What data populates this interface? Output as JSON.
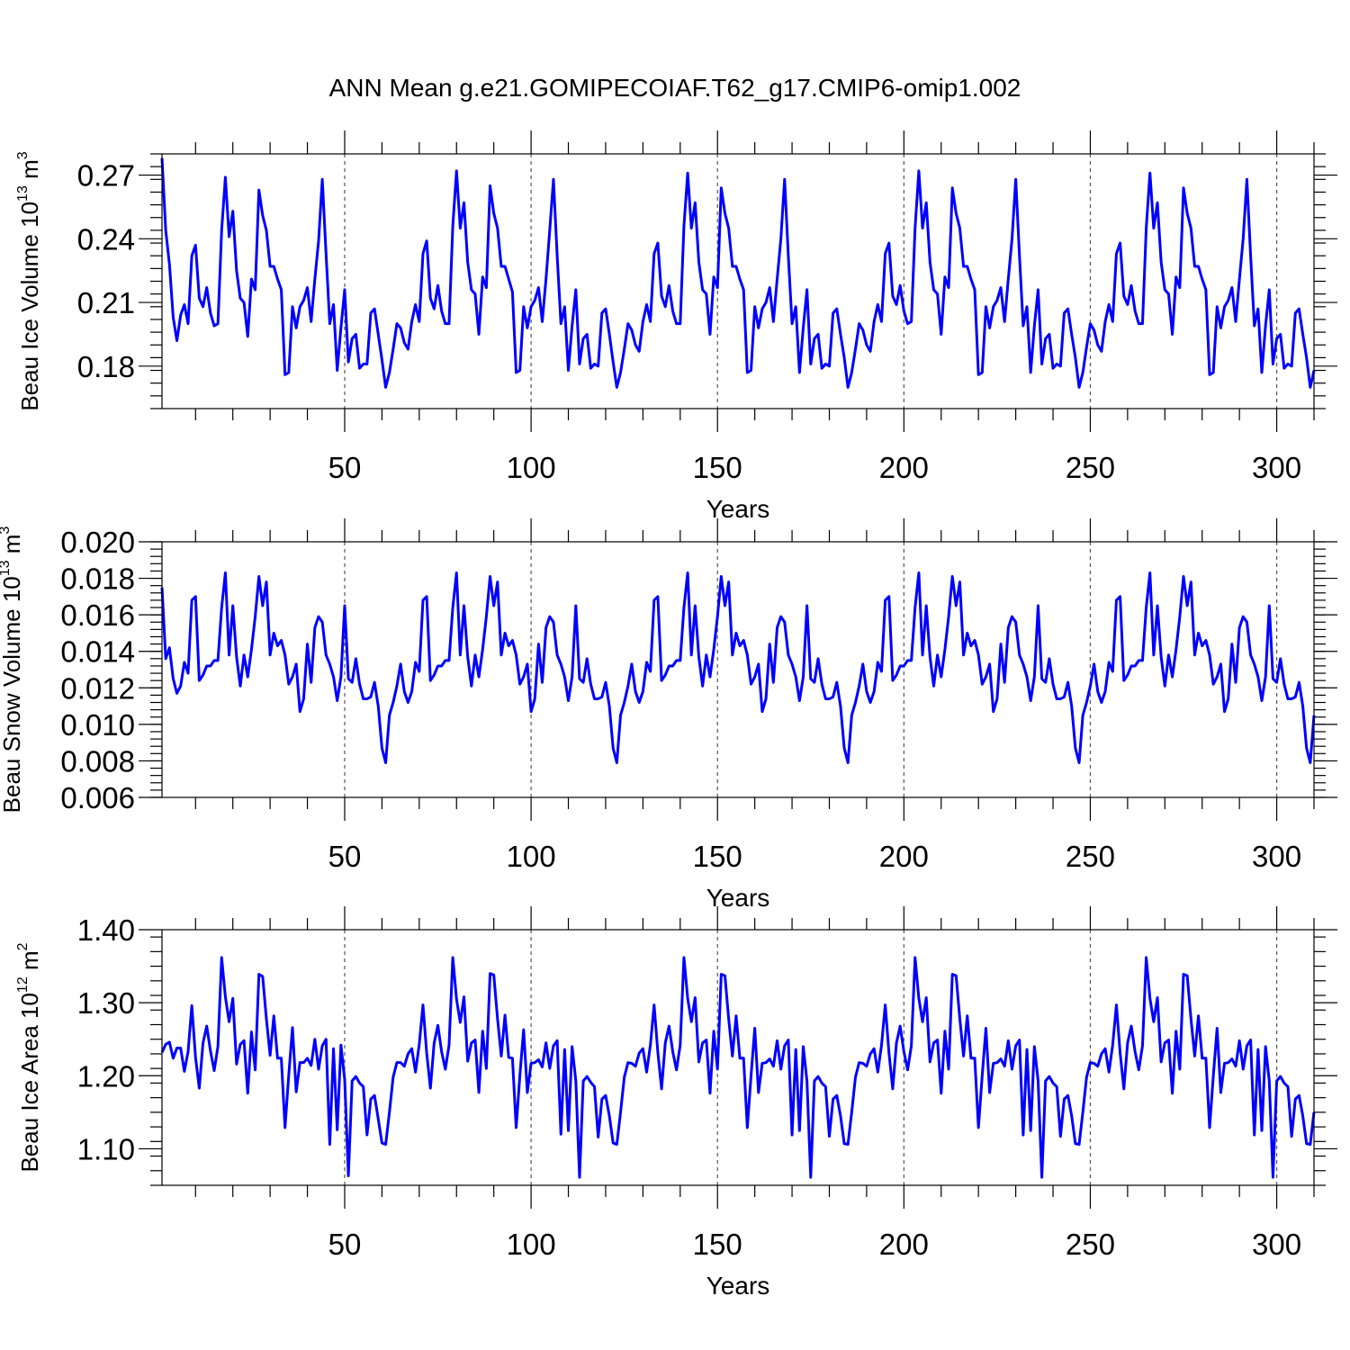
{
  "title": "ANN Mean g.e21.GOMIPECOIAF.T62_g17.CMIP6-omip1.002",
  "chart_data": [
    {
      "type": "line",
      "ylabel": "Beau Ice Volume 10",
      "ylabel_exp": "13",
      "ylabel_unit": " m",
      "ylabel_unit_exp": "3",
      "xlabel": "Years",
      "xlim": [
        1,
        310
      ],
      "ylim": [
        0.16,
        0.28
      ],
      "y_ticks": [
        0.18,
        0.21,
        0.24,
        0.27
      ],
      "y_tick_labels": [
        "0.18",
        "0.21",
        "0.24",
        "0.27"
      ],
      "x_ticks": [
        50,
        100,
        150,
        200,
        250,
        300
      ],
      "x_tick_labels": [
        "50",
        "100",
        "150",
        "200",
        "250",
        "300"
      ],
      "grid_x": true,
      "color": "#0000ff",
      "values": [
        0.278,
        0.244,
        0.228,
        0.203,
        0.192,
        0.204,
        0.209,
        0.2,
        0.232,
        0.237,
        0.212,
        0.208,
        0.217,
        0.205,
        0.199,
        0.2,
        0.244,
        0.269,
        0.241,
        0.253,
        0.225,
        0.212,
        0.21,
        0.194,
        0.221,
        0.216,
        0.263,
        0.251,
        0.244,
        0.227,
        0.227,
        0.221,
        0.216,
        0.176,
        0.177,
        0.208,
        0.198,
        0.208,
        0.211,
        0.217,
        0.201,
        0.221,
        0.239,
        0.268,
        0.233,
        0.2,
        0.209,
        0.178,
        0.198,
        0.216,
        0.182,
        0.193,
        0.195,
        0.179,
        0.181,
        0.181,
        0.205,
        0.207,
        0.195,
        0.183,
        0.17,
        0.177,
        0.188,
        0.2,
        0.198,
        0.191,
        0.188,
        0.201,
        0.209,
        0.201,
        0.233,
        0.239,
        0.212,
        0.207,
        0.218,
        0.206,
        0.2,
        0.2,
        0.246,
        0.272,
        0.245,
        0.257,
        0.229,
        0.216,
        0.214,
        0.195,
        0.222,
        0.217,
        0.265,
        0.252,
        0.245,
        0.227,
        0.227,
        0.221,
        0.215,
        0.177,
        0.178,
        0.208,
        0.198,
        0.208,
        0.211,
        0.217,
        0.201,
        0.221,
        0.244,
        0.268,
        0.232,
        0.2,
        0.208,
        0.178,
        0.199,
        0.216,
        0.181,
        0.193,
        0.195,
        0.179,
        0.181,
        0.18,
        0.205,
        0.207,
        0.195,
        0.182,
        0.17,
        0.177,
        0.188,
        0.2,
        0.197,
        0.19,
        0.187,
        0.201,
        0.209,
        0.201,
        0.233,
        0.238,
        0.213,
        0.208,
        0.218,
        0.206,
        0.2,
        0.2,
        0.246,
        0.271,
        0.245,
        0.257,
        0.229,
        0.216,
        0.214,
        0.195,
        0.222,
        0.217,
        0.264,
        0.252,
        0.245,
        0.227,
        0.227,
        0.221,
        0.216,
        0.177,
        0.178,
        0.208,
        0.198,
        0.207,
        0.21,
        0.217,
        0.201,
        0.221,
        0.24,
        0.268,
        0.232,
        0.2,
        0.208,
        0.177,
        0.198,
        0.216,
        0.181,
        0.193,
        0.195,
        0.179,
        0.181,
        0.18,
        0.205,
        0.207,
        0.195,
        0.184,
        0.17,
        0.177,
        0.188,
        0.2,
        0.197,
        0.19,
        0.187,
        0.201,
        0.209,
        0.201,
        0.233,
        0.238,
        0.213,
        0.209,
        0.218,
        0.206,
        0.2,
        0.201,
        0.245,
        0.272,
        0.245,
        0.257,
        0.229,
        0.216,
        0.214,
        0.195,
        0.222,
        0.217,
        0.264,
        0.252,
        0.245,
        0.227,
        0.227,
        0.221,
        0.216,
        0.176,
        0.177,
        0.208,
        0.198,
        0.208,
        0.211,
        0.217,
        0.201,
        0.221,
        0.24,
        0.268,
        0.232,
        0.199,
        0.208,
        0.177,
        0.199,
        0.216,
        0.181,
        0.193,
        0.195,
        0.179,
        0.181,
        0.18,
        0.205,
        0.207,
        0.195,
        0.184,
        0.17,
        0.177,
        0.189,
        0.2,
        0.197,
        0.19,
        0.187,
        0.201,
        0.209,
        0.201,
        0.233,
        0.238,
        0.213,
        0.209,
        0.218,
        0.206,
        0.2,
        0.2,
        0.245,
        0.271,
        0.245,
        0.257,
        0.229,
        0.216,
        0.214,
        0.195,
        0.222,
        0.217,
        0.264,
        0.252,
        0.245,
        0.227,
        0.227,
        0.221,
        0.216,
        0.176,
        0.177,
        0.208,
        0.198,
        0.208,
        0.211,
        0.217,
        0.201,
        0.221,
        0.24,
        0.268,
        0.232,
        0.199,
        0.207,
        0.177,
        0.199,
        0.216,
        0.181,
        0.193,
        0.195,
        0.179,
        0.181,
        0.18,
        0.205,
        0.207,
        0.195,
        0.184,
        0.17,
        0.178
      ]
    },
    {
      "type": "line",
      "ylabel": "Beau Snow Volume 10",
      "ylabel_exp": "13",
      "ylabel_unit": " m",
      "ylabel_unit_exp": "3",
      "xlabel": "Years",
      "xlim": [
        1,
        310
      ],
      "ylim": [
        0.006,
        0.02
      ],
      "y_ticks": [
        0.006,
        0.008,
        0.01,
        0.012,
        0.014,
        0.016,
        0.018,
        0.02
      ],
      "y_tick_labels": [
        "0.006",
        "0.008",
        "0.010",
        "0.012",
        "0.014",
        "0.016",
        "0.018",
        "0.020"
      ],
      "x_ticks": [
        50,
        100,
        150,
        200,
        250,
        300
      ],
      "x_tick_labels": [
        "50",
        "100",
        "150",
        "200",
        "250",
        "300"
      ],
      "grid_x": true,
      "color": "#0000ff",
      "values": [
        0.0175,
        0.0136,
        0.0142,
        0.0125,
        0.0117,
        0.0121,
        0.0134,
        0.0128,
        0.0168,
        0.017,
        0.0124,
        0.0127,
        0.0132,
        0.0132,
        0.0135,
        0.0135,
        0.0164,
        0.0183,
        0.0138,
        0.0165,
        0.0137,
        0.0121,
        0.0138,
        0.0126,
        0.0141,
        0.0159,
        0.0181,
        0.0165,
        0.0178,
        0.0138,
        0.015,
        0.0143,
        0.0146,
        0.0138,
        0.0122,
        0.0126,
        0.0133,
        0.0107,
        0.0114,
        0.0144,
        0.0123,
        0.0153,
        0.0159,
        0.0156,
        0.0138,
        0.0133,
        0.0126,
        0.0113,
        0.0126,
        0.0165,
        0.0125,
        0.0123,
        0.0136,
        0.0122,
        0.0114,
        0.0114,
        0.0115,
        0.0123,
        0.011,
        0.0087,
        0.0079,
        0.0105,
        0.0112,
        0.0121,
        0.0133,
        0.0118,
        0.0112,
        0.0118,
        0.0134,
        0.0129,
        0.0168,
        0.017,
        0.0124,
        0.0127,
        0.0132,
        0.0132,
        0.0135,
        0.0135,
        0.0164,
        0.0183,
        0.0138,
        0.0165,
        0.0137,
        0.0121,
        0.0138,
        0.0126,
        0.0141,
        0.0159,
        0.0181,
        0.0165,
        0.0178,
        0.0138,
        0.015,
        0.0143,
        0.0146,
        0.0138,
        0.0122,
        0.0126,
        0.0133,
        0.0107,
        0.0114,
        0.0144,
        0.0123,
        0.0153,
        0.0159,
        0.0156,
        0.0138,
        0.0133,
        0.0126,
        0.0113,
        0.0126,
        0.0165,
        0.0125,
        0.0123,
        0.0136,
        0.0122,
        0.0114,
        0.0114,
        0.0115,
        0.0123,
        0.011,
        0.0087,
        0.0079,
        0.0105,
        0.0112,
        0.0121,
        0.0133,
        0.0118,
        0.0112,
        0.0118,
        0.0134,
        0.0129,
        0.0168,
        0.017,
        0.0124,
        0.0127,
        0.0132,
        0.0132,
        0.0135,
        0.0135,
        0.0164,
        0.0183,
        0.0138,
        0.0165,
        0.0137,
        0.0121,
        0.0138,
        0.0126,
        0.0141,
        0.0159,
        0.0181,
        0.0165,
        0.0178,
        0.0138,
        0.015,
        0.0143,
        0.0146,
        0.0138,
        0.0122,
        0.0126,
        0.0133,
        0.0107,
        0.0114,
        0.0144,
        0.0123,
        0.0153,
        0.0159,
        0.0156,
        0.0138,
        0.0133,
        0.0126,
        0.0113,
        0.0126,
        0.0165,
        0.0125,
        0.0123,
        0.0136,
        0.0122,
        0.0114,
        0.0114,
        0.0115,
        0.0123,
        0.011,
        0.0087,
        0.0079,
        0.0105,
        0.0112,
        0.0121,
        0.0133,
        0.0118,
        0.0112,
        0.0118,
        0.0134,
        0.0129,
        0.0168,
        0.017,
        0.0124,
        0.0127,
        0.0132,
        0.0132,
        0.0135,
        0.0135,
        0.0164,
        0.0183,
        0.0138,
        0.0165,
        0.0137,
        0.0121,
        0.0138,
        0.0126,
        0.0141,
        0.0159,
        0.0181,
        0.0165,
        0.0178,
        0.0138,
        0.015,
        0.0143,
        0.0146,
        0.0138,
        0.0122,
        0.0126,
        0.0133,
        0.0107,
        0.0114,
        0.0144,
        0.0123,
        0.0153,
        0.0159,
        0.0156,
        0.0138,
        0.0133,
        0.0126,
        0.0113,
        0.0126,
        0.0165,
        0.0125,
        0.0123,
        0.0136,
        0.0122,
        0.0114,
        0.0114,
        0.0115,
        0.0123,
        0.011,
        0.0087,
        0.0079,
        0.0105,
        0.0112,
        0.0121,
        0.0133,
        0.0118,
        0.0112,
        0.0118,
        0.0134,
        0.0129,
        0.0168,
        0.017,
        0.0124,
        0.0127,
        0.0132,
        0.0132,
        0.0135,
        0.0135,
        0.0164,
        0.0183,
        0.0138,
        0.0165,
        0.0137,
        0.0121,
        0.0138,
        0.0126,
        0.0141,
        0.0159,
        0.0181,
        0.0165,
        0.0178,
        0.0138,
        0.015,
        0.0143,
        0.0146,
        0.0138,
        0.0122,
        0.0126,
        0.0133,
        0.0107,
        0.0114,
        0.0144,
        0.0123,
        0.0153,
        0.0159,
        0.0156,
        0.0138,
        0.0133,
        0.0126,
        0.0113,
        0.0126,
        0.0165,
        0.0125,
        0.0123,
        0.0136,
        0.0122,
        0.0114,
        0.0114,
        0.0115,
        0.0123,
        0.011,
        0.0087,
        0.0079,
        0.0105
      ]
    },
    {
      "type": "line",
      "ylabel": "Beau Ice Area 10",
      "ylabel_exp": "12",
      "ylabel_unit": " m",
      "ylabel_unit_exp": "2",
      "xlabel": "Years",
      "xlim": [
        1,
        310
      ],
      "ylim": [
        1.05,
        1.4
      ],
      "y_ticks": [
        1.1,
        1.2,
        1.3,
        1.4
      ],
      "y_tick_labels": [
        "1.10",
        "1.20",
        "1.30",
        "1.40"
      ],
      "x_ticks": [
        50,
        100,
        150,
        200,
        250,
        300
      ],
      "x_tick_labels": [
        "50",
        "100",
        "150",
        "200",
        "250",
        "300"
      ],
      "grid_x": true,
      "color": "#0000ff",
      "values": [
        1.232,
        1.243,
        1.246,
        1.224,
        1.238,
        1.238,
        1.206,
        1.233,
        1.296,
        1.225,
        1.183,
        1.245,
        1.268,
        1.234,
        1.207,
        1.24,
        1.362,
        1.308,
        1.274,
        1.306,
        1.216,
        1.243,
        1.248,
        1.176,
        1.26,
        1.208,
        1.339,
        1.336,
        1.278,
        1.228,
        1.282,
        1.224,
        1.224,
        1.129,
        1.201,
        1.266,
        1.178,
        1.218,
        1.218,
        1.224,
        1.214,
        1.25,
        1.209,
        1.241,
        1.25,
        1.106,
        1.237,
        1.126,
        1.242,
        1.195,
        1.063,
        1.193,
        1.199,
        1.19,
        1.185,
        1.119,
        1.168,
        1.173,
        1.141,
        1.108,
        1.106,
        1.15,
        1.198,
        1.218,
        1.218,
        1.213,
        1.23,
        1.237,
        1.205,
        1.243,
        1.297,
        1.231,
        1.183,
        1.245,
        1.269,
        1.233,
        1.209,
        1.242,
        1.362,
        1.305,
        1.273,
        1.308,
        1.22,
        1.245,
        1.249,
        1.177,
        1.261,
        1.21,
        1.34,
        1.338,
        1.278,
        1.227,
        1.283,
        1.225,
        1.224,
        1.129,
        1.201,
        1.263,
        1.177,
        1.217,
        1.218,
        1.222,
        1.212,
        1.245,
        1.21,
        1.241,
        1.248,
        1.12,
        1.236,
        1.125,
        1.24,
        1.193,
        1.061,
        1.193,
        1.199,
        1.191,
        1.185,
        1.116,
        1.168,
        1.173,
        1.145,
        1.108,
        1.106,
        1.15,
        1.198,
        1.218,
        1.217,
        1.213,
        1.231,
        1.237,
        1.205,
        1.242,
        1.297,
        1.232,
        1.182,
        1.245,
        1.268,
        1.233,
        1.208,
        1.242,
        1.362,
        1.306,
        1.274,
        1.307,
        1.219,
        1.245,
        1.249,
        1.176,
        1.261,
        1.209,
        1.339,
        1.337,
        1.278,
        1.227,
        1.282,
        1.224,
        1.224,
        1.129,
        1.2,
        1.265,
        1.177,
        1.217,
        1.218,
        1.223,
        1.213,
        1.248,
        1.209,
        1.241,
        1.249,
        1.119,
        1.236,
        1.125,
        1.24,
        1.193,
        1.061,
        1.193,
        1.199,
        1.19,
        1.185,
        1.117,
        1.168,
        1.173,
        1.145,
        1.107,
        1.106,
        1.15,
        1.198,
        1.218,
        1.217,
        1.213,
        1.23,
        1.237,
        1.205,
        1.242,
        1.297,
        1.231,
        1.182,
        1.245,
        1.268,
        1.233,
        1.208,
        1.241,
        1.362,
        1.306,
        1.274,
        1.307,
        1.219,
        1.245,
        1.249,
        1.176,
        1.261,
        1.209,
        1.339,
        1.337,
        1.278,
        1.227,
        1.282,
        1.224,
        1.224,
        1.129,
        1.2,
        1.265,
        1.177,
        1.217,
        1.218,
        1.223,
        1.213,
        1.248,
        1.209,
        1.241,
        1.249,
        1.119,
        1.236,
        1.125,
        1.24,
        1.193,
        1.061,
        1.193,
        1.199,
        1.19,
        1.185,
        1.117,
        1.168,
        1.173,
        1.145,
        1.107,
        1.106,
        1.15,
        1.198,
        1.218,
        1.217,
        1.213,
        1.23,
        1.237,
        1.205,
        1.242,
        1.297,
        1.231,
        1.182,
        1.245,
        1.268,
        1.233,
        1.208,
        1.241,
        1.362,
        1.306,
        1.274,
        1.307,
        1.219,
        1.245,
        1.249,
        1.176,
        1.261,
        1.209,
        1.339,
        1.337,
        1.278,
        1.227,
        1.282,
        1.224,
        1.224,
        1.129,
        1.2,
        1.265,
        1.177,
        1.217,
        1.218,
        1.223,
        1.213,
        1.248,
        1.209,
        1.241,
        1.249,
        1.119,
        1.236,
        1.125,
        1.24,
        1.193,
        1.061,
        1.193,
        1.199,
        1.19,
        1.185,
        1.117,
        1.168,
        1.173,
        1.145,
        1.107,
        1.106,
        1.15
      ]
    }
  ]
}
